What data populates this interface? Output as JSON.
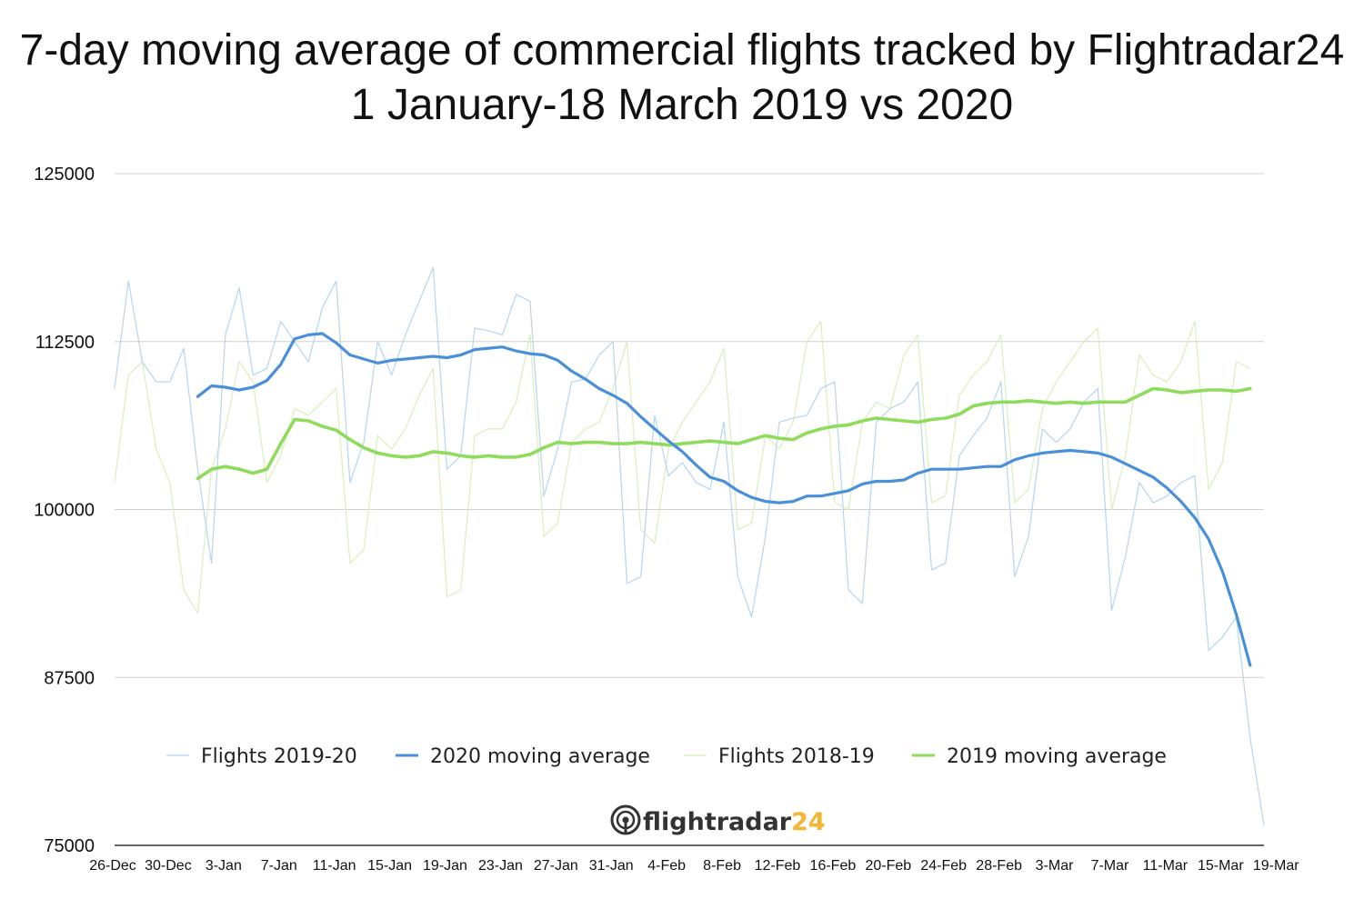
{
  "chart_data": {
    "type": "line",
    "title": "7-day moving average of commercial flights tracked by Flightradar24",
    "subtitle": "1 January-18 March 2019 vs 2020",
    "xlabel": "",
    "ylabel": "",
    "ylim": [
      75000,
      125000
    ],
    "yticks": [
      "125000",
      "112500",
      "100000",
      "87500",
      "75000"
    ],
    "x_tick_labels": [
      "26-Dec",
      "30-Dec",
      "3-Jan",
      "7-Jan",
      "11-Jan",
      "15-Jan",
      "19-Jan",
      "23-Jan",
      "27-Jan",
      "31-Jan",
      "4-Feb",
      "8-Feb",
      "12-Feb",
      "16-Feb",
      "20-Feb",
      "24-Feb",
      "28-Feb",
      "3-Mar",
      "7-Mar",
      "11-Mar",
      "15-Mar",
      "19-Mar"
    ],
    "grid": true,
    "legend_position": "bottom",
    "x_start": "26-Dec",
    "series": [
      {
        "name": "Flights 2019-20",
        "color": "#b9d8ef",
        "start": 0,
        "values": [
          109000,
          117000,
          111000,
          109500,
          109500,
          112000,
          103000,
          96000,
          113000,
          116500,
          110000,
          110500,
          114000,
          112500,
          111000,
          115000,
          117000,
          102000,
          105000,
          112500,
          110000,
          113000,
          115500,
          118000,
          103000,
          104000,
          113500,
          113300,
          113000,
          116000,
          115500,
          101000,
          104500,
          109500,
          109700,
          111500,
          112500,
          94500,
          95000,
          107000,
          102500,
          103500,
          102000,
          101500,
          106500,
          95000,
          92000,
          98000,
          106500,
          106800,
          107000,
          109000,
          109500,
          94000,
          93000,
          106500,
          107500,
          108000,
          109500,
          95500,
          96000,
          104000,
          105500,
          106800,
          109500,
          95000,
          98000,
          106000,
          105000,
          106000,
          108000,
          109000,
          92500,
          96500,
          102000,
          100500,
          101000,
          102000,
          102500,
          89500,
          90500,
          92000,
          83000,
          76500
        ]
      },
      {
        "name": "2020 moving average",
        "color": "#4a90d9",
        "start": 6,
        "values": [
          108400,
          109200,
          109100,
          108900,
          109100,
          109600,
          110800,
          112700,
          113000,
          113100,
          112400,
          111500,
          111200,
          110900,
          111100,
          111200,
          111300,
          111400,
          111300,
          111500,
          111900,
          112000,
          112100,
          111800,
          111600,
          111500,
          111100,
          110300,
          109700,
          109000,
          108500,
          107900,
          106900,
          106000,
          105100,
          104300,
          103300,
          102400,
          102100,
          101400,
          100900,
          100600,
          100500,
          100600,
          101000,
          101000,
          101200,
          101400,
          101900,
          102100,
          102100,
          102200,
          102700,
          103000,
          103000,
          103000,
          103100,
          103200,
          103200,
          103700,
          104000,
          104200,
          104300,
          104400,
          104300,
          104200,
          103900,
          103400,
          102900,
          102400,
          101600,
          100600,
          99400,
          97800,
          95400,
          92200,
          88400
        ]
      },
      {
        "name": "Flights 2018-19",
        "color": "#dcefc0",
        "start": 0,
        "values": [
          102000,
          110000,
          111000,
          104500,
          102000,
          94000,
          92300,
          103000,
          106000,
          111000,
          109500,
          102000,
          104000,
          107500,
          107000,
          108000,
          109000,
          96000,
          97000,
          105500,
          104500,
          106000,
          108500,
          110500,
          93500,
          94000,
          105500,
          106000,
          106000,
          108000,
          113000,
          98000,
          99000,
          105000,
          106000,
          106500,
          109000,
          112500,
          98500,
          97500,
          104500,
          106500,
          108000,
          109500,
          112000,
          98500,
          99000,
          105500,
          104500,
          106500,
          112500,
          114000,
          100500,
          100000,
          106500,
          108000,
          107500,
          111500,
          113000,
          100500,
          101000,
          108500,
          110000,
          111000,
          113000,
          100500,
          101500,
          107500,
          109500,
          111000,
          112500,
          113500,
          100000,
          104000,
          111500,
          110000,
          109500,
          111000,
          114000,
          101500,
          103500,
          111000,
          110500
        ]
      },
      {
        "name": "2019 moving average",
        "color": "#8fdb5b",
        "start": 6,
        "values": [
          102300,
          103000,
          103200,
          103000,
          102700,
          103000,
          104900,
          106700,
          106600,
          106200,
          105900,
          105200,
          104600,
          104200,
          104000,
          103900,
          104000,
          104300,
          104200,
          104000,
          103900,
          104000,
          103900,
          103900,
          104100,
          104600,
          105000,
          104900,
          105000,
          105000,
          104900,
          104900,
          105000,
          104900,
          104800,
          104900,
          105000,
          105100,
          105000,
          104900,
          105200,
          105500,
          105300,
          105200,
          105700,
          106000,
          106200,
          106300,
          106600,
          106800,
          106700,
          106600,
          106500,
          106700,
          106800,
          107100,
          107700,
          107900,
          108000,
          108000,
          108100,
          108000,
          107900,
          108000,
          107900,
          108000,
          108000,
          108000,
          108500,
          109000,
          108900,
          108700,
          108800,
          108900,
          108900,
          108800,
          109000
        ]
      }
    ]
  },
  "logo": {
    "text": "flightradar24"
  }
}
